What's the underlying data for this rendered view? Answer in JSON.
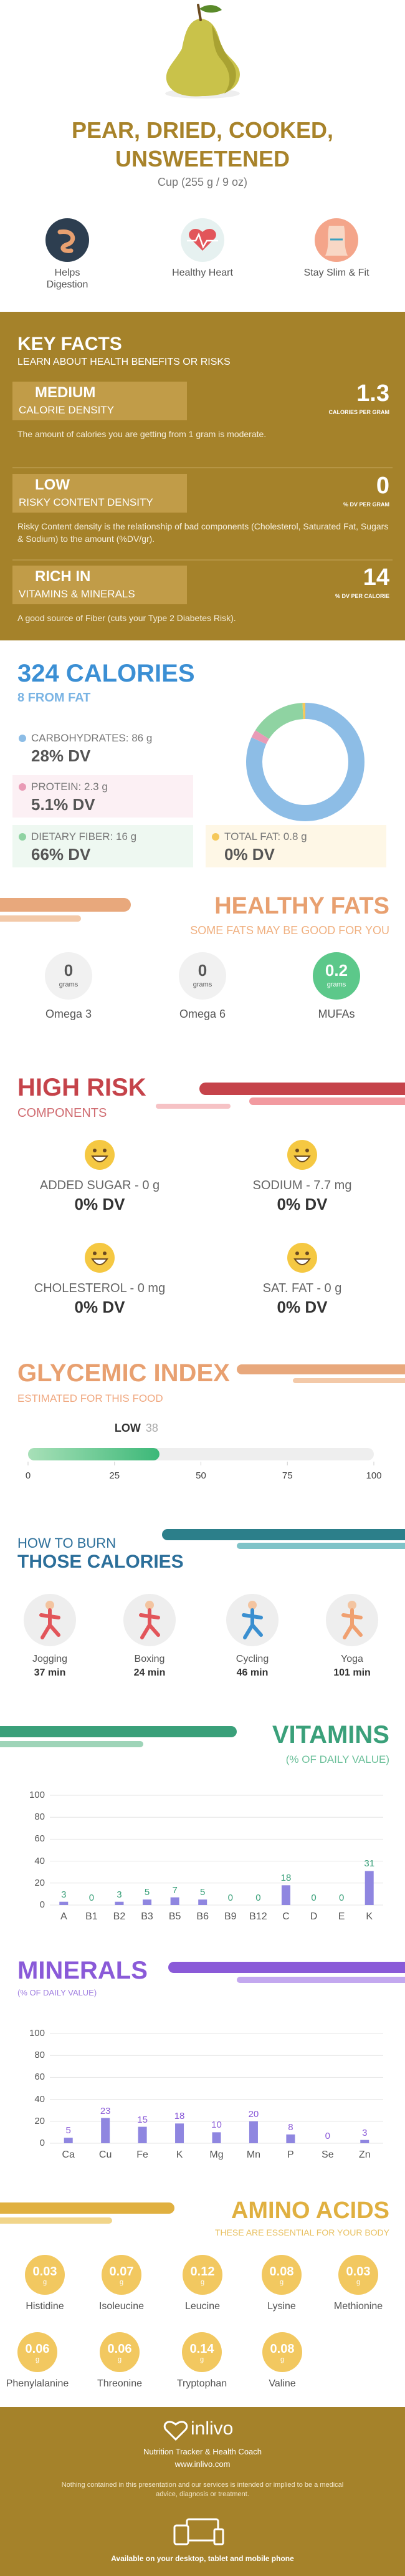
{
  "header": {
    "title": "PEAR, DRIED, COOKED, UNSWEETENED",
    "serving": "Cup (255 g / 9 oz)",
    "benefits": [
      "Helps Digestion",
      "Healthy Heart",
      "Stay Slim & Fit"
    ]
  },
  "key_facts": {
    "title": "KEY FACTS",
    "subtitle": "LEARN ABOUT HEALTH BENEFITS OR RISKS",
    "items": [
      {
        "level": "MEDIUM",
        "name": "CALORIE DENSITY",
        "value": 1.3,
        "unit": "CALORIES PER GRAM",
        "description": "The amount of calories you are getting from 1 gram is moderate."
      },
      {
        "level": "LOW",
        "name": "RISKY CONTENT DENSITY",
        "value": 0,
        "unit": "% DV PER GRAM",
        "description": "Risky Content density is the relationship of bad components (Cholesterol, Saturated Fat, Sugars & Sodium) to the amount (%DV/gr)."
      },
      {
        "level": "RICH IN",
        "name": "VITAMINS & MINERALS",
        "value": 14,
        "unit": "% DV PER CALORIE",
        "description": "A good source of Fiber (cuts your  Type 2 Diabetes Risk)."
      }
    ]
  },
  "calories": {
    "title": "324 CALORIES",
    "subtitle": "8 FROM FAT",
    "nutrients": [
      {
        "label": "CARBOHYDRATES: 86 g",
        "grams": 86,
        "dv": "28% DV",
        "color": "#8dbde6"
      },
      {
        "label": "PROTEIN: 2.3 g",
        "grams": 2.3,
        "dv": "5.1% DV",
        "color": "#e99bb6"
      },
      {
        "label": "DIETARY FIBER: 16 g",
        "grams": 16,
        "dv": "66% DV",
        "color": "#8fd3a2"
      },
      {
        "label": "TOTAL FAT: 0.8 g",
        "grams": 0.8,
        "dv": "0% DV",
        "color": "#f5c85a"
      }
    ]
  },
  "healthy_fats": {
    "title": "HEALTHY FATS",
    "subtitle": "SOME FATS MAY BE GOOD FOR YOU",
    "unit": "grams",
    "items": [
      {
        "name": "Omega 3",
        "value": 0
      },
      {
        "name": "Omega 6",
        "value": 0
      },
      {
        "name": "MUFAs",
        "value": 0.2
      }
    ]
  },
  "high_risk": {
    "title": "HIGH RISK",
    "subtitle": "COMPONENTS",
    "items": [
      {
        "label": "ADDED SUGAR - 0 g",
        "dv": "0% DV"
      },
      {
        "label": "SODIUM - 7.7 mg",
        "dv": "0% DV"
      },
      {
        "label": "CHOLESTEROL - 0 mg",
        "dv": "0% DV"
      },
      {
        "label": "SAT. FAT - 0 g",
        "dv": "0% DV"
      }
    ]
  },
  "glycemic_index": {
    "title": "GLYCEMIC INDEX",
    "subtitle": "ESTIMATED FOR THIS FOOD",
    "level": "LOW",
    "value": 38,
    "xlim": [
      0,
      100
    ],
    "xticks": [
      0,
      25,
      50,
      75,
      100
    ]
  },
  "burn": {
    "title": "HOW TO BURN",
    "subtitle": "THOSE CALORIES",
    "activities": [
      {
        "name": "Jogging",
        "duration": "37 min"
      },
      {
        "name": "Boxing",
        "duration": "24 min"
      },
      {
        "name": "Cycling",
        "duration": "46 min"
      },
      {
        "name": "Yoga",
        "duration": "101 min"
      }
    ]
  },
  "chart_data": [
    {
      "type": "bar",
      "title": "VITAMINS",
      "subtitle": "(% OF DAILY VALUE)",
      "categories": [
        "A",
        "B1",
        "B2",
        "B3",
        "B5",
        "B6",
        "B9",
        "B12",
        "C",
        "D",
        "E",
        "K"
      ],
      "values": [
        3,
        0,
        3,
        5,
        7,
        5,
        0,
        0,
        18,
        0,
        0,
        31
      ],
      "color": "#8f86e0",
      "label_color": "#3aa07a",
      "ylim": [
        0,
        100
      ],
      "yticks": [
        0,
        20,
        40,
        60,
        80,
        100
      ],
      "grid": true
    },
    {
      "type": "bar",
      "title": "MINERALS",
      "subtitle": "(% OF DAILY VALUE)",
      "categories": [
        "Ca",
        "Cu",
        "Fe",
        "K",
        "Mg",
        "Mn",
        "P",
        "Se",
        "Zn"
      ],
      "values": [
        5,
        23,
        15,
        18,
        10,
        20,
        8,
        0,
        3
      ],
      "color": "#8f86e0",
      "label_color": "#8a5ad8",
      "ylim": [
        0,
        100
      ],
      "yticks": [
        0,
        20,
        40,
        60,
        80,
        100
      ],
      "grid": true
    }
  ],
  "amino_acids": {
    "title": "AMINO ACIDS",
    "subtitle": "THESE ARE ESSENTIAL FOR YOUR BODY",
    "unit": "g",
    "items": [
      {
        "name": "Histidine",
        "value": 0.03
      },
      {
        "name": "Isoleucine",
        "value": 0.07
      },
      {
        "name": "Leucine",
        "value": 0.12
      },
      {
        "name": "Lysine",
        "value": 0.08
      },
      {
        "name": "Methionine",
        "value": 0.03
      },
      {
        "name": "Phenylalanine",
        "value": 0.06
      },
      {
        "name": "Threonine",
        "value": 0.06
      },
      {
        "name": "Tryptophan",
        "value": 0.14
      },
      {
        "name": "Valine",
        "value": 0.08
      }
    ]
  },
  "footer": {
    "brand": "inlivo",
    "tagline": "Nutrition Tracker & Health Coach",
    "url": "www.inlivo.com",
    "disclaimer": "Nothing contained in this presentation and our services is intended or implied to be a medical advice, diagnosis or treatment.",
    "availability": "Available on your desktop, tablet and mobile phone"
  }
}
